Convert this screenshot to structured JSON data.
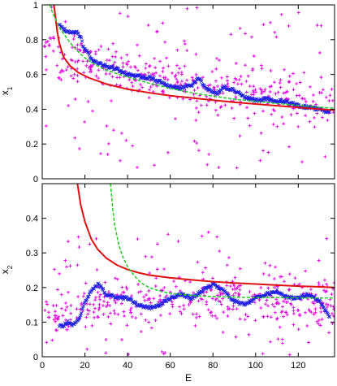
{
  "chart_data": [
    {
      "type": "scatter",
      "ylabel": "x",
      "ylabel_subscript": "1",
      "xlim": [
        0,
        137
      ],
      "ylim": [
        0,
        1
      ],
      "x_ticks": [
        0,
        20,
        40,
        60,
        80,
        100,
        120
      ],
      "y_ticks": [
        0,
        0.2,
        0.4,
        0.6,
        0.8,
        1
      ],
      "y_tick_labels": [
        "0",
        "0.2",
        "0.4",
        "0.6",
        "0.8",
        "1"
      ],
      "grid": false,
      "legend": "none",
      "series": [
        {
          "kind": "scatter",
          "marker": "+",
          "color": "#e000e0",
          "x_range": [
            1,
            137
          ],
          "y_range": [
            0.05,
            1.0
          ],
          "count": 450,
          "trend": [
            [
              1,
              0.75
            ],
            [
              20,
              0.68
            ],
            [
              50,
              0.58
            ],
            [
              80,
              0.52
            ],
            [
              110,
              0.47
            ],
            [
              137,
              0.42
            ]
          ],
          "spread": 0.2
        },
        {
          "kind": "scatter",
          "marker": "x",
          "color": "#1e1ee6",
          "points": [
            [
              8,
              0.88
            ],
            [
              10,
              0.86
            ],
            [
              12,
              0.85
            ],
            [
              14,
              0.84
            ],
            [
              16,
              0.84
            ],
            [
              18,
              0.82
            ],
            [
              19,
              0.77
            ],
            [
              21,
              0.73
            ],
            [
              23,
              0.69
            ],
            [
              25,
              0.67
            ],
            [
              28,
              0.66
            ],
            [
              32,
              0.64
            ],
            [
              35,
              0.63
            ],
            [
              40,
              0.6
            ],
            [
              45,
              0.59
            ],
            [
              50,
              0.58
            ],
            [
              55,
              0.56
            ],
            [
              60,
              0.53
            ],
            [
              65,
              0.52
            ],
            [
              70,
              0.54
            ],
            [
              73,
              0.58
            ],
            [
              75,
              0.55
            ],
            [
              78,
              0.51
            ],
            [
              82,
              0.49
            ],
            [
              85,
              0.53
            ],
            [
              90,
              0.51
            ],
            [
              95,
              0.47
            ],
            [
              100,
              0.45
            ],
            [
              105,
              0.46
            ],
            [
              110,
              0.45
            ],
            [
              115,
              0.44
            ],
            [
              120,
              0.42
            ],
            [
              125,
              0.41
            ],
            [
              130,
              0.4
            ],
            [
              135,
              0.38
            ]
          ]
        },
        {
          "kind": "line",
          "color": "#e01010",
          "width": 2,
          "points": [
            [
              5.5,
              1.0
            ],
            [
              6,
              0.95
            ],
            [
              7,
              0.85
            ],
            [
              8,
              0.78
            ],
            [
              10,
              0.7
            ],
            [
              13,
              0.65
            ],
            [
              17,
              0.61
            ],
            [
              22,
              0.58
            ],
            [
              30,
              0.545
            ],
            [
              40,
              0.515
            ],
            [
              50,
              0.495
            ],
            [
              60,
              0.478
            ],
            [
              70,
              0.465
            ],
            [
              80,
              0.452
            ],
            [
              90,
              0.44
            ],
            [
              100,
              0.43
            ],
            [
              110,
              0.42
            ],
            [
              120,
              0.41
            ],
            [
              130,
              0.4
            ],
            [
              137,
              0.395
            ]
          ]
        },
        {
          "kind": "line",
          "color": "#22cc22",
          "width": 1.5,
          "dashed": true,
          "points": [
            [
              3.5,
              1.0
            ],
            [
              5,
              0.95
            ],
            [
              8,
              0.87
            ],
            [
              12,
              0.8
            ],
            [
              16,
              0.74
            ],
            [
              20,
              0.695
            ],
            [
              25,
              0.655
            ],
            [
              30,
              0.625
            ],
            [
              40,
              0.585
            ],
            [
              50,
              0.55
            ],
            [
              60,
              0.52
            ],
            [
              70,
              0.495
            ],
            [
              80,
              0.475
            ],
            [
              90,
              0.458
            ],
            [
              100,
              0.445
            ],
            [
              110,
              0.433
            ],
            [
              120,
              0.422
            ],
            [
              130,
              0.412
            ],
            [
              137,
              0.405
            ]
          ]
        }
      ]
    },
    {
      "type": "scatter",
      "xlabel": "E",
      "ylabel": "x",
      "ylabel_subscript": "2",
      "xlim": [
        0,
        137
      ],
      "ylim": [
        0,
        0.5
      ],
      "x_ticks": [
        0,
        20,
        40,
        60,
        80,
        100,
        120
      ],
      "x_tick_labels": [
        "0",
        "20",
        "40",
        "60",
        "80",
        "100",
        "120"
      ],
      "y_ticks": [
        0,
        0.1,
        0.2,
        0.3,
        0.4
      ],
      "y_tick_labels": [
        "0",
        "0.1",
        "0.2",
        "0.3",
        "0.4"
      ],
      "grid": false,
      "legend": "none",
      "series": [
        {
          "kind": "scatter",
          "marker": "+",
          "color": "#e000e0",
          "x_range": [
            1,
            137
          ],
          "y_range": [
            0.0,
            0.36
          ],
          "count": 450,
          "trend": [
            [
              1,
              0.1
            ],
            [
              20,
              0.15
            ],
            [
              50,
              0.17
            ],
            [
              90,
              0.17
            ],
            [
              137,
              0.16
            ]
          ],
          "spread": 0.1
        },
        {
          "kind": "scatter",
          "marker": "x",
          "color": "#1e1ee6",
          "points": [
            [
              8,
              0.09
            ],
            [
              10,
              0.09
            ],
            [
              12,
              0.1
            ],
            [
              14,
              0.09
            ],
            [
              16,
              0.1
            ],
            [
              18,
              0.12
            ],
            [
              20,
              0.16
            ],
            [
              23,
              0.19
            ],
            [
              26,
              0.21
            ],
            [
              28,
              0.2
            ],
            [
              30,
              0.18
            ],
            [
              35,
              0.17
            ],
            [
              40,
              0.17
            ],
            [
              45,
              0.15
            ],
            [
              50,
              0.14
            ],
            [
              55,
              0.15
            ],
            [
              60,
              0.17
            ],
            [
              65,
              0.18
            ],
            [
              70,
              0.17
            ],
            [
              75,
              0.19
            ],
            [
              80,
              0.21
            ],
            [
              85,
              0.19
            ],
            [
              90,
              0.16
            ],
            [
              95,
              0.15
            ],
            [
              100,
              0.17
            ],
            [
              105,
              0.18
            ],
            [
              110,
              0.19
            ],
            [
              115,
              0.17
            ],
            [
              120,
              0.17
            ],
            [
              125,
              0.18
            ],
            [
              130,
              0.16
            ],
            [
              135,
              0.11
            ]
          ]
        },
        {
          "kind": "line",
          "color": "#e01010",
          "width": 2,
          "points": [
            [
              16.5,
              0.5
            ],
            [
              18,
              0.44
            ],
            [
              20,
              0.39
            ],
            [
              23,
              0.34
            ],
            [
              26,
              0.31
            ],
            [
              30,
              0.285
            ],
            [
              35,
              0.265
            ],
            [
              40,
              0.252
            ],
            [
              45,
              0.243
            ],
            [
              50,
              0.236
            ],
            [
              60,
              0.228
            ],
            [
              70,
              0.222
            ],
            [
              80,
              0.217
            ],
            [
              90,
              0.213
            ],
            [
              100,
              0.21
            ],
            [
              110,
              0.207
            ],
            [
              120,
              0.204
            ],
            [
              130,
              0.202
            ],
            [
              137,
              0.2
            ]
          ]
        },
        {
          "kind": "line",
          "color": "#22cc22",
          "width": 1.5,
          "dashed": true,
          "points": [
            [
              32,
              0.5
            ],
            [
              33,
              0.43
            ],
            [
              34,
              0.38
            ],
            [
              36,
              0.32
            ],
            [
              38,
              0.285
            ],
            [
              40,
              0.26
            ],
            [
              43,
              0.235
            ],
            [
              46,
              0.215
            ],
            [
              50,
              0.2
            ],
            [
              55,
              0.19
            ],
            [
              60,
              0.183
            ],
            [
              70,
              0.177
            ],
            [
              80,
              0.174
            ],
            [
              90,
              0.172
            ],
            [
              100,
              0.171
            ],
            [
              110,
              0.171
            ],
            [
              120,
              0.17
            ],
            [
              130,
              0.17
            ],
            [
              137,
              0.17
            ]
          ]
        }
      ]
    }
  ]
}
